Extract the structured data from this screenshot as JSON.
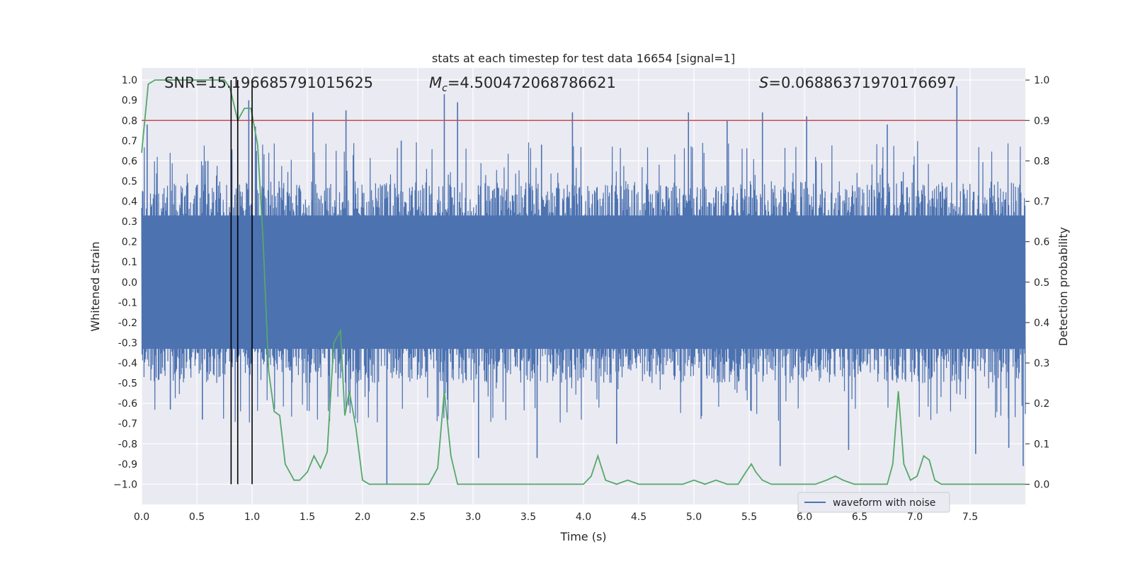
{
  "chart_data": {
    "type": "line",
    "title": "stats at each timestep for test data 16654 [signal=1]",
    "xlabel": "Time (s)",
    "ylabel_left": "Whitened strain",
    "ylabel_right": "Detection probability",
    "xlim": [
      0.0,
      8.0
    ],
    "ylim_left": [
      -1.1,
      1.06
    ],
    "ylim_right": [
      -0.05,
      1.03
    ],
    "x_ticks": [
      "0.0",
      "0.5",
      "1.0",
      "1.5",
      "2.0",
      "2.5",
      "3.0",
      "3.5",
      "4.0",
      "4.5",
      "5.0",
      "5.5",
      "6.0",
      "6.5",
      "7.0",
      "7.5"
    ],
    "x_tick_values": [
      0.0,
      0.5,
      1.0,
      1.5,
      2.0,
      2.5,
      3.0,
      3.5,
      4.0,
      4.5,
      5.0,
      5.5,
      6.0,
      6.5,
      7.0,
      7.5
    ],
    "y_left_ticks": [
      "1.0",
      "0.9",
      "0.8",
      "0.7",
      "0.6",
      "0.5",
      "0.4",
      "0.3",
      "0.2",
      "0.1",
      "0.0",
      "-0.1",
      "-0.2",
      "-0.3",
      "-0.4",
      "-0.5",
      "-0.6",
      "-0.7",
      "-0.8",
      "-0.9",
      "−1.0"
    ],
    "y_left_tick_values": [
      1.0,
      0.9,
      0.8,
      0.7,
      0.6,
      0.5,
      0.4,
      0.3,
      0.2,
      0.1,
      0.0,
      -0.1,
      -0.2,
      -0.3,
      -0.4,
      -0.5,
      -0.6,
      -0.7,
      -0.8,
      -0.9,
      -1.0
    ],
    "y_right_ticks": [
      "1.0",
      "0.9",
      "0.8",
      "0.7",
      "0.6",
      "0.5",
      "0.4",
      "0.3",
      "0.2",
      "0.1",
      "0.0"
    ],
    "y_right_tick_values": [
      1.0,
      0.9,
      0.8,
      0.7,
      0.6,
      0.5,
      0.4,
      0.3,
      0.2,
      0.1,
      0.0
    ],
    "grid": true,
    "annotations": {
      "snr": "SNR=15.196685791015625",
      "mc_symbol": "M",
      "mc_sub": "c",
      "mc_value": "=4.500472068786621",
      "s_symbol": "S",
      "s_value": "=0.06886371970176697"
    },
    "threshold_line": {
      "value": 0.9,
      "axis": "right",
      "color": "#c44e52"
    },
    "vertical_lines": [
      0.81,
      0.87,
      1.0
    ],
    "legend": {
      "placement": "lower-right",
      "entries": [
        "waveform with noise"
      ]
    },
    "series": [
      {
        "name": "waveform with noise",
        "axis": "left",
        "color": "#4c72b0",
        "envelope_typical": 0.5,
        "spikes": [
          [
            0.05,
            0.78
          ],
          [
            0.26,
            -0.63
          ],
          [
            0.6,
            0.6
          ],
          [
            0.55,
            -0.68
          ],
          [
            0.97,
            0.9
          ],
          [
            1.03,
            0.77
          ],
          [
            1.55,
            0.84
          ],
          [
            1.85,
            0.85
          ],
          [
            2.22,
            -1.0
          ],
          [
            2.35,
            0.7
          ],
          [
            2.74,
            0.93
          ],
          [
            2.86,
            0.89
          ],
          [
            3.05,
            -0.87
          ],
          [
            3.58,
            -0.87
          ],
          [
            3.62,
            0.68
          ],
          [
            3.9,
            0.84
          ],
          [
            4.3,
            -0.8
          ],
          [
            4.95,
            0.84
          ],
          [
            5.3,
            0.8
          ],
          [
            5.62,
            0.84
          ],
          [
            5.78,
            -0.91
          ],
          [
            6.02,
            0.82
          ],
          [
            6.4,
            -0.83
          ],
          [
            6.75,
            0.78
          ],
          [
            7.38,
            0.97
          ],
          [
            7.55,
            -0.85
          ],
          [
            7.85,
            -0.82
          ],
          [
            7.98,
            -0.91
          ]
        ]
      },
      {
        "name": "",
        "axis": "right",
        "color": "#55a868",
        "x": [
          0.0,
          0.06,
          0.12,
          0.2,
          0.3,
          0.4,
          0.5,
          0.6,
          0.7,
          0.75,
          0.8,
          0.87,
          0.93,
          0.99,
          1.05,
          1.1,
          1.15,
          1.2,
          1.25,
          1.3,
          1.38,
          1.43,
          1.5,
          1.56,
          1.62,
          1.68,
          1.74,
          1.8,
          1.84,
          1.88,
          1.94,
          2.0,
          2.06,
          2.14,
          2.2,
          2.3,
          2.4,
          2.5,
          2.6,
          2.68,
          2.74,
          2.8,
          2.86,
          2.93,
          3.0,
          3.1,
          3.2,
          3.3,
          3.4,
          3.5,
          3.6,
          3.7,
          3.8,
          3.9,
          4.0,
          4.07,
          4.13,
          4.2,
          4.3,
          4.4,
          4.5,
          4.6,
          4.7,
          4.8,
          4.9,
          5.0,
          5.1,
          5.2,
          5.3,
          5.4,
          5.47,
          5.52,
          5.56,
          5.62,
          5.7,
          5.8,
          5.9,
          6.0,
          6.1,
          6.2,
          6.28,
          6.35,
          6.45,
          6.55,
          6.65,
          6.75,
          6.8,
          6.85,
          6.9,
          6.96,
          7.02,
          7.08,
          7.13,
          7.18,
          7.24,
          7.3,
          7.4,
          7.5,
          7.6,
          7.7,
          7.8,
          7.9,
          8.0
        ],
        "y": [
          0.82,
          0.99,
          1.0,
          1.0,
          1.0,
          1.0,
          1.0,
          1.0,
          1.0,
          1.0,
          0.98,
          0.9,
          0.93,
          0.93,
          0.84,
          0.6,
          0.28,
          0.18,
          0.17,
          0.05,
          0.01,
          0.01,
          0.03,
          0.07,
          0.04,
          0.08,
          0.35,
          0.38,
          0.17,
          0.23,
          0.14,
          0.01,
          0.0,
          0.0,
          0.0,
          0.0,
          0.0,
          0.0,
          0.0,
          0.04,
          0.23,
          0.07,
          0.0,
          0.0,
          0.0,
          0.0,
          0.0,
          0.0,
          0.0,
          0.0,
          0.0,
          0.0,
          0.0,
          0.0,
          0.0,
          0.02,
          0.07,
          0.01,
          0.0,
          0.01,
          0.0,
          0.0,
          0.0,
          0.0,
          0.0,
          0.01,
          0.0,
          0.01,
          0.0,
          0.0,
          0.03,
          0.05,
          0.03,
          0.01,
          0.0,
          0.0,
          0.0,
          0.0,
          0.0,
          0.01,
          0.02,
          0.01,
          0.0,
          0.0,
          0.0,
          0.0,
          0.05,
          0.23,
          0.05,
          0.01,
          0.02,
          0.07,
          0.06,
          0.01,
          0.0,
          0.0,
          0.0,
          0.0,
          0.0,
          0.0,
          0.0,
          0.0,
          0.0
        ]
      }
    ]
  }
}
